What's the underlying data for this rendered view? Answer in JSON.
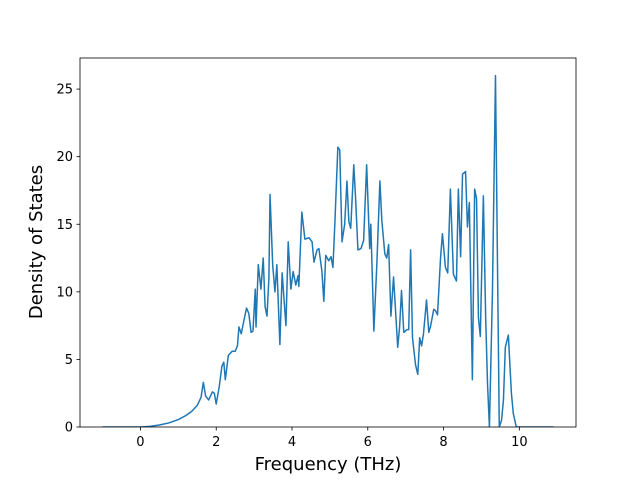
{
  "chart_data": {
    "type": "line",
    "x_label": "Frequency (THz)",
    "y_label": "Density of States",
    "xlim": [
      -1.595,
      11.495
    ],
    "ylim": [
      0,
      27.3
    ],
    "xticks": [
      0,
      2,
      4,
      6,
      8,
      10
    ],
    "yticks": [
      0,
      5,
      10,
      15,
      20,
      25
    ],
    "grid": false,
    "color": "#1f77b4",
    "x": [
      -1.0,
      -0.5,
      0,
      0.25,
      0.5,
      0.75,
      1.0,
      1.2,
      1.35,
      1.5,
      1.6,
      1.66,
      1.72,
      1.8,
      1.9,
      1.95,
      2.0,
      2.08,
      2.15,
      2.2,
      2.24,
      2.32,
      2.42,
      2.5,
      2.56,
      2.6,
      2.66,
      2.74,
      2.8,
      2.86,
      2.92,
      2.97,
      3.03,
      3.05,
      3.11,
      3.18,
      3.24,
      3.29,
      3.34,
      3.39,
      3.42,
      3.49,
      3.55,
      3.6,
      3.68,
      3.74,
      3.84,
      3.9,
      3.97,
      4.03,
      4.1,
      4.16,
      4.18,
      4.26,
      4.34,
      4.45,
      4.53,
      4.58,
      4.66,
      4.71,
      4.79,
      4.84,
      4.89,
      4.97,
      5.03,
      5.08,
      5.13,
      5.21,
      5.26,
      5.32,
      5.39,
      5.45,
      5.5,
      5.55,
      5.63,
      5.68,
      5.74,
      5.82,
      5.89,
      5.97,
      6.05,
      6.08,
      6.16,
      6.24,
      6.32,
      6.37,
      6.45,
      6.5,
      6.55,
      6.61,
      6.68,
      6.79,
      6.84,
      6.89,
      6.95,
      7.03,
      7.08,
      7.13,
      7.18,
      7.26,
      7.32,
      7.37,
      7.42,
      7.47,
      7.55,
      7.61,
      7.66,
      7.74,
      7.79,
      7.84,
      7.92,
      7.97,
      8.05,
      8.11,
      8.18,
      8.26,
      8.34,
      8.39,
      8.45,
      8.5,
      8.58,
      8.63,
      8.68,
      8.76,
      8.82,
      8.87,
      8.92,
      8.97,
      9.05,
      9.11,
      9.16,
      9.21,
      9.29,
      9.37,
      9.42,
      9.47,
      9.53,
      9.58,
      9.63,
      9.71,
      9.79,
      9.84,
      9.92,
      10.2,
      10.9
    ],
    "values": [
      0,
      0,
      0,
      0.05,
      0.15,
      0.3,
      0.55,
      0.85,
      1.15,
      1.6,
      2.2,
      3.3,
      2.3,
      2.0,
      2.6,
      2.5,
      1.7,
      3.0,
      4.5,
      4.8,
      3.5,
      5.3,
      5.6,
      5.6,
      6.0,
      7.4,
      6.9,
      8.0,
      8.8,
      8.4,
      7.0,
      7.1,
      10.2,
      7.4,
      12.0,
      10.2,
      12.5,
      8.9,
      8.2,
      11.0,
      17.2,
      12.0,
      10.0,
      12.0,
      6.1,
      11.4,
      7.5,
      13.7,
      10.2,
      11.5,
      10.5,
      11.2,
      10.4,
      15.9,
      13.9,
      14.0,
      13.7,
      12.2,
      13.1,
      13.2,
      11.5,
      9.3,
      12.7,
      12.3,
      12.6,
      11.8,
      15.0,
      20.7,
      20.5,
      13.7,
      15.0,
      18.2,
      15.2,
      14.7,
      19.4,
      16.8,
      13.1,
      13.2,
      13.8,
      19.4,
      13.2,
      15.0,
      7.1,
      12.1,
      18.2,
      15.3,
      12.8,
      12.5,
      13.5,
      8.2,
      11.1,
      5.9,
      7.4,
      10.1,
      7.0,
      7.2,
      7.2,
      13.1,
      6.6,
      4.6,
      3.9,
      6.6,
      6.0,
      6.9,
      9.4,
      7.0,
      7.5,
      8.7,
      8.6,
      8.3,
      12.5,
      14.3,
      11.8,
      11.4,
      17.6,
      11.3,
      10.8,
      17.6,
      12.6,
      18.7,
      18.9,
      14.8,
      16.6,
      3.5,
      17.6,
      16.9,
      8.1,
      6.7,
      17.1,
      8.2,
      3.2,
      0,
      10.0,
      26.0,
      12.8,
      0,
      0.5,
      2.0,
      5.9,
      6.8,
      2.5,
      1.0,
      0,
      0,
      0
    ]
  }
}
